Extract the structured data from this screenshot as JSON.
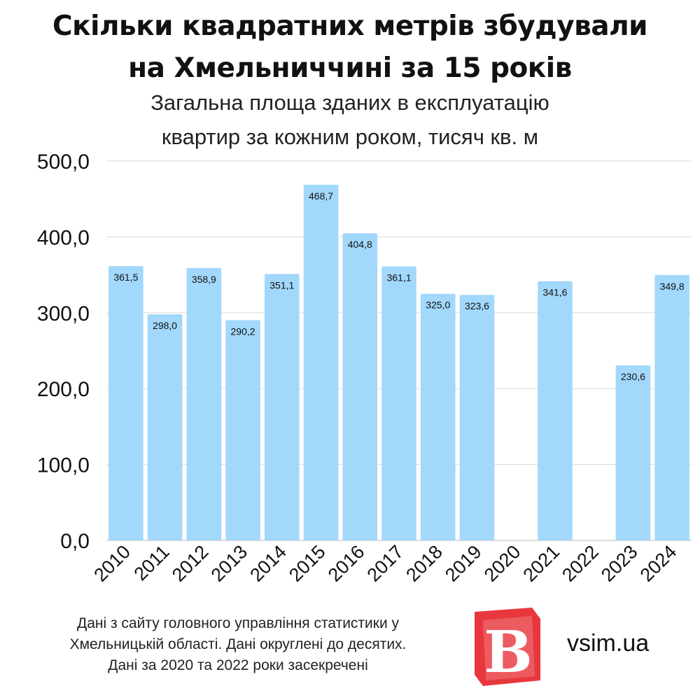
{
  "header": {
    "title_line1": "Скільки квадратних метрів збудували",
    "title_line2": "на Хмельниччині за 15 років",
    "subtitle_line1": "Загальна площа зданих в експлуатацію",
    "subtitle_line2": "квартир за кожним роком, тисяч кв. м"
  },
  "chart_data": {
    "type": "bar",
    "categories": [
      "2010",
      "2011",
      "2012",
      "2013",
      "2014",
      "2015",
      "2016",
      "2017",
      "2018",
      "2019",
      "2020",
      "2021",
      "2022",
      "2023",
      "2024"
    ],
    "values": [
      361.5,
      298.0,
      358.9,
      290.2,
      351.1,
      468.7,
      404.8,
      361.1,
      325.0,
      323.6,
      null,
      341.6,
      null,
      230.6,
      349.8
    ],
    "value_labels": [
      "361,5",
      "298,0",
      "358,9",
      "290,2",
      "351,1",
      "468,7",
      "404,8",
      "361,1",
      "325,0",
      "323,6",
      "",
      "341,6",
      "",
      "230,6",
      "349,8"
    ],
    "yticks": [
      0,
      100,
      200,
      300,
      400,
      500
    ],
    "ytick_labels": [
      "0,0",
      "100,0",
      "200,0",
      "300,0",
      "400,0",
      "500,0"
    ],
    "ylim": [
      0,
      500
    ],
    "grid": true,
    "bar_color": "#a2d8fb"
  },
  "footer": {
    "line1": "Дані з сайту головного управління статистики у",
    "line2": "Хмельницькій області. Дані округлені до десятих.",
    "line3": "Дані за 2020 та 2022 роки засекречені"
  },
  "brand": {
    "logo_letter": "B",
    "site": "vsim.ua",
    "logo_color": "#e8383d"
  }
}
